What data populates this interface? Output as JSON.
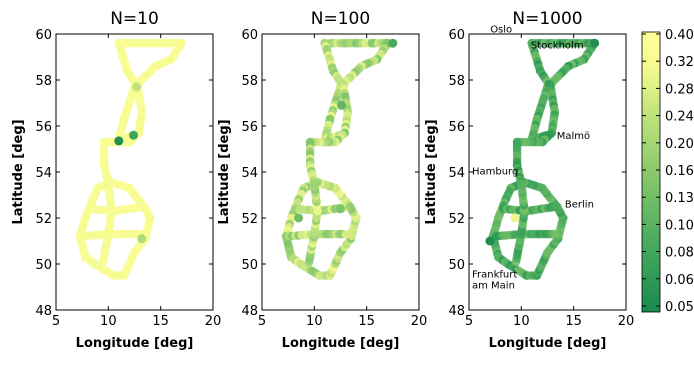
{
  "chart_data": [
    {
      "type": "scatter",
      "title": "N=10",
      "xlabel": "Longitude [deg]",
      "ylabel": "Latitude [deg]",
      "xlim": [
        5,
        20
      ],
      "ylim": [
        48,
        60
      ],
      "xticks": [
        5,
        10,
        15,
        20
      ],
      "yticks": [
        48,
        50,
        52,
        54,
        56,
        58,
        60
      ],
      "annotations": [],
      "route_coloring": {
        "base_value": 0.36,
        "variation": 0.02
      },
      "highlight_points": [
        {
          "x": 11.0,
          "y": 55.35,
          "value": 0.02
        },
        {
          "x": 12.4,
          "y": 55.6,
          "value": 0.1
        },
        {
          "x": 12.7,
          "y": 57.7,
          "value": 0.28
        },
        {
          "x": 13.2,
          "y": 51.1,
          "value": 0.26
        }
      ]
    },
    {
      "type": "scatter",
      "title": "N=100",
      "xlabel": "Longitude [deg]",
      "ylabel": "Latitude [deg]",
      "xlim": [
        5,
        20
      ],
      "ylim": [
        48,
        60
      ],
      "xticks": [
        5,
        10,
        15,
        20
      ],
      "yticks": [
        48,
        50,
        52,
        54,
        56,
        58,
        60
      ],
      "annotations": [],
      "route_coloring": {
        "base_value": 0.27,
        "variation": 0.07
      },
      "highlight_points": [
        {
          "x": 17.5,
          "y": 59.6,
          "value": 0.12
        },
        {
          "x": 12.6,
          "y": 56.9,
          "value": 0.16
        },
        {
          "x": 8.5,
          "y": 52.0,
          "value": 0.18
        },
        {
          "x": 12.5,
          "y": 52.4,
          "value": 0.2
        }
      ]
    },
    {
      "type": "scatter",
      "title": "N=1000",
      "xlabel": "Longitude [deg]",
      "ylabel": "Latitude [deg]",
      "xlim": [
        5,
        20
      ],
      "ylim": [
        48,
        60
      ],
      "xticks": [
        5,
        10,
        15,
        20
      ],
      "yticks": [
        48,
        50,
        52,
        54,
        56,
        58,
        60
      ],
      "annotations": [
        {
          "text": "Oslo",
          "x": 10.75,
          "y": 59.9
        },
        {
          "text": "Stockholm",
          "x": 18.05,
          "y": 59.33
        },
        {
          "text": "Malmö",
          "x": 13.0,
          "y": 55.6
        },
        {
          "text": "Hamburg",
          "x": 10.0,
          "y": 53.55
        },
        {
          "text": "Berlin",
          "x": 13.4,
          "y": 52.5
        },
        {
          "text": "Frankfurt am Main",
          "x": 8.7,
          "y": 50.1
        }
      ],
      "route_coloring": {
        "base_value": 0.12,
        "variation": 0.07
      },
      "highlight_points": [
        {
          "x": 7.0,
          "y": 51.0,
          "value": 0.01
        },
        {
          "x": 9.4,
          "y": 52.0,
          "value": 0.33
        },
        {
          "x": 17.0,
          "y": 59.6,
          "value": 0.02
        }
      ]
    }
  ],
  "colorbar": {
    "ticks": [
      "0.40",
      "0.32",
      "0.28",
      "0.24",
      "0.20",
      "0.16",
      "0.13",
      "0.10",
      "0.08",
      "0.06",
      "0.05"
    ],
    "colors": [
      "#1a8a4f",
      "#3ea55a",
      "#7cc369",
      "#bfe27c",
      "#f5fb8f",
      "#ffff99"
    ]
  },
  "route": [
    {
      "from": [
        11.0,
        59.6
      ],
      "to": [
        17.0,
        59.6
      ]
    },
    {
      "from": [
        17.0,
        59.6
      ],
      "to": [
        16.0,
        58.9
      ]
    },
    {
      "from": [
        16.0,
        58.9
      ],
      "to": [
        14.5,
        58.6
      ]
    },
    {
      "from": [
        14.5,
        58.6
      ],
      "to": [
        12.5,
        57.7
      ]
    },
    {
      "from": [
        12.5,
        57.7
      ],
      "to": [
        11.5,
        56.3
      ]
    },
    {
      "from": [
        11.5,
        56.3
      ],
      "to": [
        11.0,
        55.4
      ]
    },
    {
      "from": [
        11.0,
        55.4
      ],
      "to": [
        12.4,
        55.6
      ]
    },
    {
      "from": [
        11.0,
        59.6
      ],
      "to": [
        11.8,
        58.4
      ]
    },
    {
      "from": [
        11.8,
        58.4
      ],
      "to": [
        12.8,
        57.7
      ]
    },
    {
      "from": [
        12.8,
        57.7
      ],
      "to": [
        13.2,
        56.6
      ]
    },
    {
      "from": [
        13.2,
        56.6
      ],
      "to": [
        12.9,
        55.7
      ]
    },
    {
      "from": [
        12.9,
        55.7
      ],
      "to": [
        12.0,
        55.3
      ]
    },
    {
      "from": [
        12.0,
        55.3
      ],
      "to": [
        9.6,
        55.3
      ]
    },
    {
      "from": [
        9.6,
        55.3
      ],
      "to": [
        9.6,
        54.3
      ]
    },
    {
      "from": [
        9.6,
        54.3
      ],
      "to": [
        10.0,
        53.5
      ]
    },
    {
      "from": [
        10.0,
        53.5
      ],
      "to": [
        9.0,
        53.3
      ]
    },
    {
      "from": [
        9.0,
        53.3
      ],
      "to": [
        8.5,
        52.8
      ]
    },
    {
      "from": [
        8.5,
        52.8
      ],
      "to": [
        7.8,
        52.0
      ]
    },
    {
      "from": [
        7.8,
        52.0
      ],
      "to": [
        7.3,
        51.2
      ]
    },
    {
      "from": [
        7.3,
        51.2
      ],
      "to": [
        7.8,
        50.3
      ]
    },
    {
      "from": [
        7.8,
        50.3
      ],
      "to": [
        8.7,
        50.0
      ]
    },
    {
      "from": [
        8.7,
        50.0
      ],
      "to": [
        10.5,
        49.5
      ]
    },
    {
      "from": [
        10.5,
        49.5
      ],
      "to": [
        11.5,
        49.5
      ]
    },
    {
      "from": [
        11.5,
        49.5
      ],
      "to": [
        12.5,
        50.5
      ]
    },
    {
      "from": [
        12.5,
        50.5
      ],
      "to": [
        13.5,
        51.1
      ]
    },
    {
      "from": [
        13.5,
        51.1
      ],
      "to": [
        14.0,
        52.0
      ]
    },
    {
      "from": [
        14.0,
        52.0
      ],
      "to": [
        13.4,
        52.5
      ]
    },
    {
      "from": [
        13.4,
        52.5
      ],
      "to": [
        12.0,
        53.3
      ]
    },
    {
      "from": [
        12.0,
        53.3
      ],
      "to": [
        10.0,
        53.6
      ]
    },
    {
      "from": [
        8.3,
        52.4
      ],
      "to": [
        10.5,
        52.3
      ]
    },
    {
      "from": [
        10.5,
        52.3
      ],
      "to": [
        13.4,
        52.5
      ]
    },
    {
      "from": [
        7.3,
        51.2
      ],
      "to": [
        10.0,
        51.3
      ]
    },
    {
      "from": [
        10.0,
        51.3
      ],
      "to": [
        13.3,
        51.3
      ]
    },
    {
      "from": [
        9.5,
        50.1
      ],
      "to": [
        10.0,
        51.3
      ]
    },
    {
      "from": [
        10.0,
        51.3
      ],
      "to": [
        10.3,
        52.3
      ]
    },
    {
      "from": [
        10.3,
        52.3
      ],
      "to": [
        10.0,
        53.5
      ]
    }
  ]
}
